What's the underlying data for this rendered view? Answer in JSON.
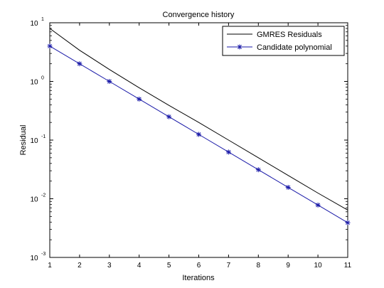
{
  "chart_data": {
    "type": "line",
    "title": "Convergence history",
    "xlabel": "Iterations",
    "ylabel": "Residual",
    "xlim": [
      1,
      11
    ],
    "ylim": [
      0.001,
      10
    ],
    "yscale": "log",
    "grid": false,
    "legend_position": "top-right",
    "x_ticks": [
      1,
      2,
      3,
      4,
      5,
      6,
      7,
      8,
      9,
      10,
      11
    ],
    "y_ticks": [
      {
        "base": "10",
        "exp": "1",
        "value": 10
      },
      {
        "base": "10",
        "exp": "0",
        "value": 1
      },
      {
        "base": "10",
        "exp": "-1",
        "value": 0.1
      },
      {
        "base": "10",
        "exp": "-2",
        "value": 0.01
      },
      {
        "base": "10",
        "exp": "-3",
        "value": 0.001
      }
    ],
    "x": [
      1,
      2,
      3,
      4,
      5,
      6,
      7,
      8,
      9,
      10,
      11
    ],
    "series": [
      {
        "name": "GMRES Residuals",
        "color": "#000000",
        "marker": "none",
        "values": [
          8.0,
          3.4,
          1.6,
          0.78,
          0.39,
          0.2,
          0.1,
          0.05,
          0.025,
          0.0125,
          0.0064
        ]
      },
      {
        "name": "Candidate polynomial",
        "color": "#1a1aa8",
        "marker": "asterisk",
        "values": [
          4.0,
          2.0,
          1.0,
          0.5,
          0.25,
          0.125,
          0.0625,
          0.03125,
          0.015625,
          0.0078125,
          0.00390625
        ]
      }
    ]
  }
}
